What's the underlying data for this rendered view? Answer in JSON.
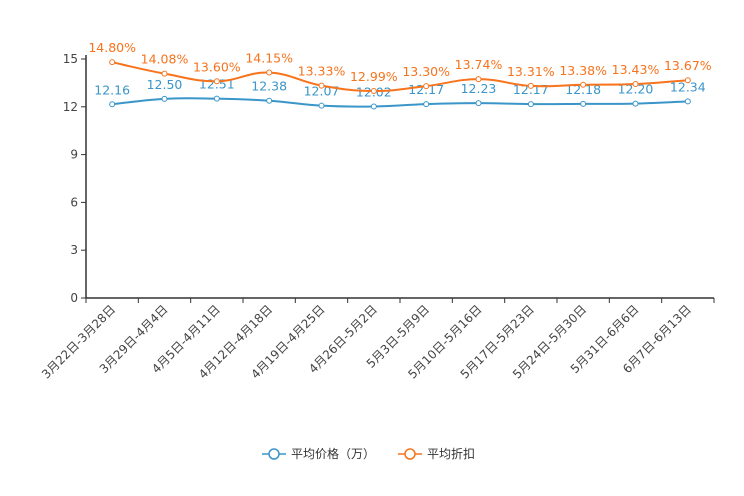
{
  "chart_data": {
    "type": "line",
    "title": "",
    "xlabel": "",
    "ylabel": "",
    "ylim": [
      0,
      15
    ],
    "yticks": [
      0,
      3,
      6,
      9,
      12,
      15
    ],
    "grid": false,
    "legend_position": "bottom-center",
    "categories": [
      "3月22日-3月28日",
      "3月29日-4月4日",
      "4月5日-4月11日",
      "4月12日-4月18日",
      "4月19日-4月25日",
      "4月26日-5月2日",
      "5月3日-5月9日",
      "5月10日-5月16日",
      "5月17日-5月23日",
      "5月24日-5月30日",
      "5月31日-6月6日",
      "6月7日-6月13日"
    ],
    "series": [
      {
        "name": "平均价格（万）",
        "color": "#3a95c9",
        "values": [
          12.16,
          12.5,
          12.51,
          12.38,
          12.07,
          12.02,
          12.17,
          12.23,
          12.17,
          12.18,
          12.2,
          12.34
        ],
        "labels": [
          "12.16",
          "12.50",
          "12.51",
          "12.38",
          "12.07",
          "12.02",
          "12.17",
          "12.23",
          "12.17",
          "12.18",
          "12.20",
          "12.34"
        ]
      },
      {
        "name": "平均折扣",
        "color": "#f7731c",
        "values": [
          14.8,
          14.08,
          13.6,
          14.15,
          13.33,
          12.99,
          13.3,
          13.74,
          13.31,
          13.38,
          13.43,
          13.67
        ],
        "labels": [
          "14.80%",
          "14.08%",
          "13.60%",
          "14.15%",
          "13.33%",
          "12.99%",
          "13.30%",
          "13.74%",
          "13.31%",
          "13.38%",
          "13.43%",
          "13.67%"
        ]
      }
    ]
  }
}
